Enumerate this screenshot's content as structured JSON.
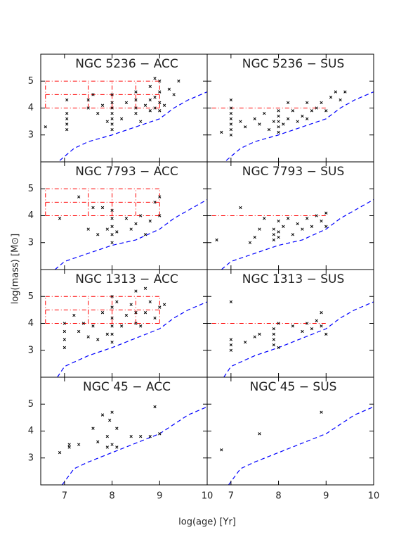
{
  "x_label": "log(age) [Yr]",
  "y_label": "log(mass) [M⊙]",
  "chart_data": [
    {
      "type": "scatter",
      "title": "NGC 5236 − ACC",
      "color": "#000000",
      "limit_color": "#0000ff",
      "box_color": "#ff0000",
      "xlim": [
        6.5,
        10
      ],
      "ylim": [
        2,
        6
      ],
      "xticks": [
        7,
        8,
        9,
        10
      ],
      "yticks": [
        3,
        4,
        5
      ],
      "x": [
        6.6,
        7.05,
        7.05,
        7.05,
        7.05,
        7.05,
        7.5,
        7.5,
        7.6,
        7.7,
        7.8,
        7.9,
        8.0,
        8.0,
        8.0,
        8.0,
        8.0,
        8.0,
        8.0,
        8.2,
        8.3,
        8.5,
        8.5,
        8.5,
        8.5,
        8.6,
        8.7,
        8.8,
        8.8,
        8.8,
        8.9,
        8.9,
        8.9,
        9.0,
        9.0,
        9.0,
        9.0,
        9.1,
        9.2,
        9.3,
        9.4
      ],
      "y": [
        3.3,
        3.2,
        3.4,
        3.6,
        3.8,
        4.3,
        4.3,
        4.0,
        4.5,
        3.8,
        4.1,
        3.5,
        3.2,
        3.4,
        3.6,
        3.8,
        4.0,
        4.2,
        4.5,
        3.6,
        4.2,
        3.8,
        4.0,
        4.3,
        4.6,
        3.5,
        4.1,
        3.9,
        4.3,
        4.8,
        4.0,
        4.4,
        5.1,
        3.9,
        4.2,
        4.6,
        5.0,
        4.1,
        4.7,
        4.5,
        5.0
      ],
      "limit_x": [
        6.9,
        7.2,
        7.5,
        8.0,
        8.5,
        9.0,
        9.3,
        9.6,
        10.0
      ],
      "limit_y": [
        2.05,
        2.5,
        2.75,
        3.0,
        3.3,
        3.6,
        4.0,
        4.3,
        4.6
      ],
      "box_levels": [
        4,
        4.5,
        5
      ],
      "box_span": [
        6.6,
        9
      ],
      "box_dividers": [
        7.5,
        8,
        8.5,
        9
      ]
    },
    {
      "type": "scatter",
      "title": "NGC 5236 − SUS",
      "color": "#000000",
      "limit_color": "#0000ff",
      "box_color": "#ff0000",
      "xlim": [
        6.5,
        10
      ],
      "ylim": [
        2,
        6
      ],
      "xticks": [
        7,
        8,
        9,
        10
      ],
      "yticks": [
        3,
        4,
        5
      ],
      "x": [
        7.0,
        7.0,
        7.0,
        7.0,
        7.0,
        7.0,
        7.0,
        6.8,
        7.2,
        7.3,
        7.5,
        7.6,
        7.7,
        7.8,
        7.9,
        8.0,
        8.0,
        8.0,
        8.0,
        8.0,
        8.1,
        8.2,
        8.3,
        8.4,
        8.5,
        8.6,
        8.7,
        8.8,
        8.9,
        9.0,
        9.1,
        9.2,
        9.3,
        9.4,
        8.6,
        8.2
      ],
      "y": [
        3.0,
        3.2,
        3.4,
        3.6,
        3.8,
        4.0,
        4.3,
        3.1,
        3.5,
        3.3,
        3.6,
        3.4,
        3.8,
        3.2,
        3.5,
        3.1,
        3.3,
        3.5,
        3.7,
        3.9,
        3.4,
        3.6,
        3.9,
        3.5,
        3.7,
        3.6,
        3.9,
        4.0,
        4.2,
        3.9,
        4.4,
        4.6,
        4.3,
        4.6,
        4.2,
        4.2
      ],
      "limit_x": [
        6.9,
        7.2,
        7.5,
        8.0,
        8.5,
        9.0,
        9.3,
        9.6,
        10.0
      ],
      "limit_y": [
        2.05,
        2.5,
        2.75,
        3.0,
        3.3,
        3.6,
        4.0,
        4.3,
        4.6
      ],
      "box_levels": [
        4
      ],
      "box_span": [
        6.6,
        9
      ],
      "box_dividers": []
    },
    {
      "type": "scatter",
      "title": "NGC 7793 − ACC",
      "color": "#000000",
      "limit_color": "#0000ff",
      "box_color": "#ff0000",
      "xlim": [
        6.5,
        10
      ],
      "ylim": [
        2,
        6
      ],
      "xticks": [
        7,
        8,
        9,
        10
      ],
      "yticks": [
        3,
        4,
        5
      ],
      "x": [
        6.9,
        7.3,
        7.6,
        7.7,
        7.8,
        7.9,
        8.0,
        8.0,
        8.0,
        8.0,
        8.0,
        8.1,
        8.3,
        8.4,
        8.5,
        8.6,
        8.7,
        8.8,
        8.9,
        9.0,
        9.0,
        7.5
      ],
      "y": [
        3.9,
        4.7,
        4.3,
        3.3,
        4.3,
        3.5,
        3.0,
        3.3,
        3.6,
        3.9,
        4.2,
        3.4,
        3.9,
        3.5,
        3.7,
        4.0,
        3.3,
        3.8,
        4.5,
        4.7,
        4.0,
        3.5
      ],
      "limit_x": [
        6.8,
        7.0,
        7.5,
        8.0,
        8.5,
        9.0,
        9.3,
        9.6,
        10.0
      ],
      "limit_y": [
        2.0,
        2.3,
        2.6,
        2.9,
        3.1,
        3.5,
        3.9,
        4.2,
        4.6
      ],
      "box_levels": [
        4,
        4.5,
        5
      ],
      "box_span": [
        6.6,
        9
      ],
      "box_dividers": [
        7.5,
        8,
        8.5,
        9
      ]
    },
    {
      "type": "scatter",
      "title": "NGC 7793 − SUS",
      "color": "#000000",
      "limit_color": "#0000ff",
      "box_color": "#ff0000",
      "xlim": [
        6.5,
        10
      ],
      "ylim": [
        2,
        6
      ],
      "xticks": [
        7,
        8,
        9,
        10
      ],
      "yticks": [
        3,
        4,
        5
      ],
      "x": [
        6.7,
        7.2,
        7.4,
        7.5,
        7.7,
        7.9,
        7.9,
        7.9,
        8.0,
        8.0,
        8.0,
        8.1,
        8.3,
        8.4,
        8.5,
        8.6,
        8.7,
        8.8,
        8.9,
        9.0,
        9.0,
        8.2,
        7.6
      ],
      "y": [
        3.1,
        4.3,
        3.0,
        3.2,
        3.9,
        3.1,
        3.3,
        3.5,
        3.2,
        3.4,
        3.8,
        3.6,
        3.3,
        3.7,
        3.5,
        3.9,
        3.6,
        4.0,
        3.8,
        4.1,
        3.6,
        3.9,
        3.5
      ],
      "limit_x": [
        6.8,
        7.0,
        7.5,
        8.0,
        8.5,
        9.0,
        9.3,
        9.6,
        10.0
      ],
      "limit_y": [
        2.0,
        2.3,
        2.6,
        2.9,
        3.1,
        3.5,
        3.9,
        4.2,
        4.6
      ],
      "box_levels": [
        4
      ],
      "box_span": [
        6.6,
        9
      ],
      "box_dividers": []
    },
    {
      "type": "scatter",
      "title": "NGC 1313 − ACC",
      "color": "#000000",
      "limit_color": "#0000ff",
      "box_color": "#ff0000",
      "xlim": [
        6.5,
        10
      ],
      "ylim": [
        2,
        6
      ],
      "xticks": [
        7,
        8,
        9,
        10
      ],
      "yticks": [
        3,
        4,
        5
      ],
      "x": [
        7.0,
        7.0,
        7.0,
        7.0,
        7.2,
        7.3,
        7.4,
        7.5,
        7.6,
        7.7,
        7.8,
        7.9,
        8.0,
        8.0,
        8.0,
        8.0,
        8.0,
        8.0,
        8.1,
        8.2,
        8.3,
        8.4,
        8.5,
        8.5,
        8.5,
        8.6,
        8.7,
        8.8,
        8.9,
        9.0,
        9.1,
        8.7
      ],
      "y": [
        3.1,
        3.4,
        3.7,
        4.0,
        4.3,
        3.7,
        4.0,
        3.5,
        3.9,
        3.4,
        4.4,
        3.6,
        3.3,
        3.6,
        3.9,
        4.2,
        4.6,
        5.0,
        4.8,
        3.9,
        4.3,
        4.7,
        4.0,
        4.4,
        5.2,
        3.9,
        4.4,
        4.8,
        4.2,
        4.6,
        4.7,
        5.3
      ],
      "limit_x": [
        6.85,
        7.0,
        7.5,
        8.0,
        8.5,
        9.0,
        9.3,
        9.6,
        10.0
      ],
      "limit_y": [
        2.0,
        2.4,
        2.8,
        3.1,
        3.45,
        3.8,
        4.2,
        4.5,
        4.8
      ],
      "box_levels": [
        4,
        4.5,
        5
      ],
      "box_span": [
        6.6,
        9
      ],
      "box_dividers": [
        7.5,
        8,
        8.5,
        9
      ]
    },
    {
      "type": "scatter",
      "title": "NGC 1313 − SUS",
      "color": "#000000",
      "limit_color": "#0000ff",
      "box_color": "#ff0000",
      "xlim": [
        6.5,
        10
      ],
      "ylim": [
        2,
        6
      ],
      "xticks": [
        7,
        8,
        9,
        10
      ],
      "yticks": [
        3,
        4,
        5
      ],
      "x": [
        7.0,
        7.0,
        7.0,
        7.0,
        7.3,
        7.5,
        7.6,
        7.9,
        7.9,
        7.9,
        7.9,
        8.0,
        8.3,
        8.5,
        8.6,
        8.7,
        8.8,
        8.9,
        8.9,
        9.0,
        8.0
      ],
      "y": [
        3.0,
        3.2,
        3.4,
        4.8,
        3.3,
        3.5,
        3.6,
        3.2,
        3.4,
        3.6,
        3.8,
        3.1,
        3.9,
        3.7,
        4.0,
        3.8,
        4.1,
        3.9,
        4.4,
        3.6,
        4.0
      ],
      "limit_x": [
        6.85,
        7.0,
        7.5,
        8.0,
        8.5,
        9.0,
        9.3,
        9.6,
        10.0
      ],
      "limit_y": [
        2.0,
        2.4,
        2.8,
        3.1,
        3.45,
        3.8,
        4.2,
        4.5,
        4.8
      ],
      "box_levels": [
        4
      ],
      "box_span": [
        6.6,
        9
      ],
      "box_dividers": []
    },
    {
      "type": "scatter",
      "title": "NGC 45 − ACC",
      "color": "#000000",
      "limit_color": "#0000ff",
      "box_color": "#ff0000",
      "xlim": [
        6.5,
        10
      ],
      "ylim": [
        2,
        6
      ],
      "xticks": [
        7,
        8,
        9,
        10
      ],
      "yticks": [
        3,
        4,
        5
      ],
      "x": [
        6.9,
        7.1,
        7.1,
        7.3,
        7.6,
        7.7,
        7.8,
        7.9,
        7.9,
        7.95,
        8.0,
        8.0,
        8.1,
        8.1,
        8.4,
        8.6,
        8.8,
        8.9,
        9.0
      ],
      "y": [
        3.2,
        3.4,
        3.5,
        3.5,
        4.1,
        3.6,
        4.6,
        3.4,
        3.8,
        4.4,
        4.7,
        3.5,
        3.4,
        4.1,
        3.8,
        3.8,
        3.8,
        4.9,
        3.9
      ],
      "limit_x": [
        6.95,
        7.2,
        7.5,
        8.0,
        8.5,
        9.0,
        9.3,
        9.6,
        10.0
      ],
      "limit_y": [
        2.0,
        2.6,
        2.85,
        3.2,
        3.55,
        3.9,
        4.25,
        4.6,
        4.9
      ],
      "box_levels": [],
      "box_span": [],
      "box_dividers": []
    },
    {
      "type": "scatter",
      "title": "NGC 45 − SUS",
      "color": "#000000",
      "limit_color": "#0000ff",
      "box_color": "#ff0000",
      "xlim": [
        6.5,
        10
      ],
      "ylim": [
        2,
        6
      ],
      "xticks": [
        7,
        8,
        9,
        10
      ],
      "yticks": [
        3,
        4,
        5
      ],
      "x": [
        6.8,
        7.6,
        8.9
      ],
      "y": [
        3.3,
        3.9,
        4.7
      ],
      "limit_x": [
        6.95,
        7.2,
        7.5,
        8.0,
        8.5,
        9.0,
        9.3,
        9.6,
        10.0
      ],
      "limit_y": [
        2.0,
        2.6,
        2.85,
        3.2,
        3.55,
        3.9,
        4.25,
        4.6,
        4.9
      ],
      "box_levels": [],
      "box_span": [],
      "box_dividers": []
    }
  ]
}
